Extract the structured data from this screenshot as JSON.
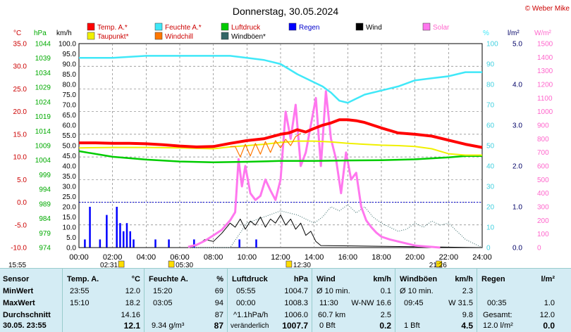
{
  "title": "Donnerstag, 30.05.2024",
  "copyright": "© Weber Mike",
  "colors": {
    "temp": "#ff0000",
    "humidity": "#40e8f8",
    "pressure": "#00cc00",
    "rain": "#0000ff",
    "wind": "#000000",
    "solar": "#ff77ee",
    "dewpoint": "#f0f000",
    "windchill": "#ff7700",
    "gust": "#336666",
    "grid": "#808080",
    "hpa_axis": "#00aa00",
    "deg_axis": "#cc0000",
    "rain_axis": "#000066",
    "solar_axis": "#ff66cc"
  },
  "legend": [
    {
      "label": "Temp. A.*",
      "color": "#ff0000"
    },
    {
      "label": "Feuchte A.*",
      "color": "#40e8f8"
    },
    {
      "label": "Luftdruck",
      "color": "#00cc00"
    },
    {
      "label": "Regen",
      "color": "#0000ff"
    },
    {
      "label": "Wind",
      "color": "#000000"
    },
    {
      "label": "Solar",
      "color": "#ff77ee"
    },
    {
      "label": "Taupunkt*",
      "color": "#f0f000"
    },
    {
      "label": "Windchill",
      "color": "#ff7700"
    },
    {
      "label": "Windböen*",
      "color": "#336666"
    }
  ],
  "chart_data": {
    "type": "line",
    "title": "Donnerstag, 30.05.2024",
    "x_ticks": [
      "00:00",
      "02:00",
      "04:00",
      "06:00",
      "08:00",
      "10:00",
      "12:00",
      "14:00",
      "16:00",
      "18:00",
      "20:00",
      "22:00",
      "24:00"
    ],
    "axes": {
      "temp": {
        "unit": "°C",
        "range": [
          -10,
          35
        ],
        "ticks": [
          "35.0",
          "30.0",
          "25.0",
          "20.0",
          "15.0",
          "10.0",
          "5.0",
          "0.0",
          "-5.0",
          "-10.0"
        ]
      },
      "pressure": {
        "unit": "hPa",
        "range": [
          974,
          1047
        ],
        "ticks": [
          "1044",
          "1039",
          "1034",
          "1029",
          "1024",
          "1019",
          "1014",
          "1009",
          "1004",
          "999",
          "994",
          "989",
          "984",
          "979",
          "974"
        ]
      },
      "wind": {
        "unit": "km/h",
        "range": [
          0,
          100
        ],
        "ticks": [
          "100.0",
          "95.0",
          "90.0",
          "85.0",
          "80.0",
          "75.0",
          "70.0",
          "65.0",
          "60.0",
          "55.0",
          "50.0",
          "45.0",
          "40.0",
          "35.0",
          "30.0",
          "25.0",
          "20.0",
          "15.0",
          "10.0",
          "5.0",
          "0.0"
        ]
      },
      "humidity": {
        "unit": "%",
        "range": [
          0,
          100
        ],
        "ticks": [
          "100",
          "90",
          "80",
          "70",
          "60",
          "50",
          "40",
          "30",
          "20",
          "10",
          "0"
        ]
      },
      "rain": {
        "unit": "l/m²",
        "range": [
          0,
          5
        ],
        "ticks": [
          "5.0",
          "4.0",
          "3.0",
          "2.0",
          "1.0",
          "0.0"
        ]
      },
      "solar": {
        "unit": "W/m²",
        "range": [
          0,
          1500
        ],
        "ticks": [
          "1500",
          "1400",
          "1300",
          "1200",
          "1100",
          "1000",
          "900",
          "800",
          "700",
          "600",
          "500",
          "400",
          "300",
          "200",
          "100",
          "0"
        ]
      }
    },
    "series": [
      {
        "name": "Temp. A.*",
        "axis": "temp",
        "x": [
          0,
          1,
          2,
          3,
          4,
          5,
          6,
          7,
          8,
          9,
          10,
          11,
          12,
          12.5,
          13,
          13.5,
          14,
          14.5,
          15,
          15.5,
          16,
          16.5,
          17,
          18,
          19,
          20,
          21,
          22,
          23,
          24
        ],
        "values": [
          13.1,
          13.1,
          13.0,
          13.0,
          12.9,
          12.7,
          12.4,
          12.2,
          12.3,
          13.0,
          13.6,
          14.0,
          15.0,
          15.3,
          16.0,
          15.5,
          16.3,
          17.0,
          17.5,
          18.2,
          18.2,
          18.0,
          17.6,
          16.4,
          15.3,
          15.0,
          14.6,
          13.7,
          12.8,
          12.1
        ]
      },
      {
        "name": "Feuchte A.*",
        "axis": "humidity",
        "x": [
          0,
          2,
          4,
          6,
          8,
          9,
          10,
          11,
          12,
          13,
          14,
          14.5,
          15,
          15.5,
          16,
          16.5,
          17,
          18,
          19,
          20,
          21,
          22,
          23,
          24
        ],
        "values": [
          93,
          93,
          94,
          94,
          94,
          94,
          93,
          92,
          90,
          85,
          81,
          79,
          76,
          72,
          71,
          73,
          75,
          77,
          79,
          82,
          83,
          84,
          86,
          86
        ]
      },
      {
        "name": "Luftdruck",
        "axis": "pressure",
        "x": [
          0,
          2,
          4,
          6,
          8,
          10,
          12,
          14,
          16,
          18,
          20,
          22,
          23,
          24
        ],
        "values": [
          1008.5,
          1006.5,
          1005.5,
          1004.8,
          1004.5,
          1004.7,
          1005.0,
          1005.0,
          1005.2,
          1005.3,
          1005.6,
          1006.3,
          1006.8,
          1006.8
        ]
      },
      {
        "name": "Taupunkt*",
        "axis": "temp",
        "x": [
          0,
          2,
          4,
          6,
          8,
          9,
          10,
          11,
          12,
          13,
          14,
          15,
          16,
          17,
          18,
          19,
          20,
          21,
          22,
          23,
          24
        ],
        "values": [
          12.0,
          12.1,
          12.1,
          12.0,
          11.8,
          12.2,
          12.5,
          12.8,
          13.2,
          13.5,
          13.5,
          13.3,
          13.0,
          12.8,
          12.6,
          12.5,
          12.3,
          11.8,
          10.7,
          10.4,
          10.4
        ]
      },
      {
        "name": "Windchill",
        "axis": "temp",
        "x": [
          9,
          9.3,
          9.6,
          9.9,
          10.2,
          10.5,
          10.8,
          11.1,
          11.4,
          11.7,
          12,
          12.3,
          12.6,
          12.9,
          13.2
        ],
        "values": [
          12.3,
          12.3,
          10.0,
          12.8,
          10.2,
          13.0,
          10.6,
          13.4,
          11.0,
          13.6,
          12.0,
          13.9,
          12.5,
          14.5,
          15.2
        ]
      },
      {
        "name": "Wind",
        "axis": "wind",
        "x": [
          0,
          6.5,
          7,
          7.5,
          8,
          8.5,
          9,
          9.3,
          9.6,
          9.9,
          10.2,
          10.5,
          10.8,
          11.1,
          11.4,
          11.7,
          12,
          12.3,
          12.6,
          12.9,
          13.2,
          13.5,
          13.8,
          14.1,
          14.4,
          24
        ],
        "values": [
          0,
          0,
          1,
          4,
          3,
          7,
          12,
          10,
          14,
          9,
          13,
          11,
          15,
          10,
          14,
          12,
          16,
          11,
          14,
          9,
          12,
          6,
          8,
          3,
          1,
          0
        ]
      },
      {
        "name": "Windböen*",
        "axis": "wind",
        "x": [
          0,
          9,
          10,
          11,
          12,
          13,
          14,
          14.5,
          15,
          15.5,
          16,
          16.5,
          17,
          17.5,
          18,
          18.5,
          19,
          19.5,
          20,
          20.5,
          21,
          21.5,
          22,
          22.5,
          23,
          24
        ],
        "values": [
          0,
          0,
          12,
          15,
          18,
          16,
          12,
          15,
          20,
          18,
          21,
          17,
          20,
          15,
          12,
          10,
          8,
          9,
          12,
          10,
          13,
          11,
          12,
          8,
          4,
          0
        ]
      },
      {
        "name": "Solar",
        "axis": "solar",
        "x": [
          6.5,
          7,
          7.5,
          8,
          8.5,
          9,
          9.3,
          9.5,
          9.7,
          9.9,
          10.2,
          10.5,
          10.8,
          11.1,
          11.4,
          11.7,
          12,
          12.3,
          12.6,
          12.9,
          13.2,
          13.5,
          13.8,
          14.1,
          14.4,
          14.7,
          15,
          15.3,
          15.6,
          15.9,
          16.2,
          16.5,
          16.8,
          17.1,
          17.4,
          17.7,
          18,
          18.5,
          19,
          19.5,
          20,
          20.5,
          21,
          21.5
        ],
        "values": [
          5,
          20,
          50,
          90,
          130,
          200,
          260,
          650,
          450,
          600,
          400,
          350,
          380,
          500,
          420,
          350,
          500,
          1000,
          800,
          1050,
          600,
          700,
          900,
          1100,
          600,
          1150,
          800,
          650,
          400,
          700,
          500,
          550,
          300,
          200,
          150,
          110,
          80,
          60,
          45,
          30,
          15,
          10,
          5,
          0
        ]
      }
    ],
    "rain": {
      "name": "Regen",
      "axis": "rain",
      "x": [
        0.3,
        0.6,
        1.2,
        1.6,
        2.2,
        2.4,
        2.6,
        2.8,
        3.0,
        3.2,
        4.5,
        5.3,
        6.8,
        9.5,
        10.5
      ],
      "values": [
        0.2,
        1.0,
        0.2,
        0.8,
        1.0,
        0.6,
        0.4,
        0.6,
        0.4,
        0.2,
        0.2,
        0.2,
        0.2,
        0.2,
        0.2
      ]
    }
  },
  "times_bar": {
    "sunrise_left": "15:55",
    "marker_times": [
      "02:31",
      "05:30",
      "12:30",
      "21:26"
    ]
  },
  "stats": {
    "sensor": {
      "header": "Sensor",
      "rows": [
        "MinWert",
        "MaxWert",
        "Durchschnitt"
      ],
      "footer": "30.05. 23:55"
    },
    "temp": {
      "header": "Temp. A.",
      "unit": "°C",
      "rows": [
        [
          "23:55",
          "12.0"
        ],
        [
          "15:10",
          "18.2"
        ],
        [
          "",
          "14.16"
        ]
      ],
      "current": "12.1"
    },
    "humidity": {
      "header": "Feuchte A.",
      "unit": "%",
      "rows": [
        [
          "15:20",
          "69"
        ],
        [
          "03:05",
          "94"
        ],
        [
          "",
          "87"
        ]
      ],
      "footer_left": "9.34 g/m³",
      "current": "87"
    },
    "pressure": {
      "header": "Luftdruck",
      "unit": "hPa",
      "rows": [
        [
          "05:55",
          "1004.7"
        ],
        [
          "00:00",
          "1008.3"
        ],
        [
          "^1.1hPa/h",
          "1006.0"
        ]
      ],
      "footer_left": "veränderlich",
      "current": "1007.7"
    },
    "wind": {
      "header": "Wind",
      "unit": "km/h",
      "rows": [
        [
          "Ø 10 min.",
          "",
          "0.1"
        ],
        [
          "11:30",
          "W-NW 16.6",
          ""
        ],
        [
          "60.7 km",
          "",
          "2.5"
        ]
      ],
      "footer_left": "0 Bft",
      "current": "0.2"
    },
    "gust": {
      "header": "Windböen",
      "unit": "km/h",
      "rows": [
        [
          "Ø 10 min.",
          "2.3"
        ],
        [
          "09:45",
          "W 31.5"
        ],
        [
          "",
          "9.8"
        ]
      ],
      "footer_left": "1 Bft",
      "current": "4.5"
    },
    "rain": {
      "header": "Regen",
      "unit": "l/m²",
      "rows": [
        [
          "",
          ""
        ],
        [
          "00:35",
          "1.0"
        ],
        [
          "Gesamt:",
          "12.0"
        ]
      ],
      "footer_left": "12.0 l/m²",
      "current": "0.0"
    }
  }
}
